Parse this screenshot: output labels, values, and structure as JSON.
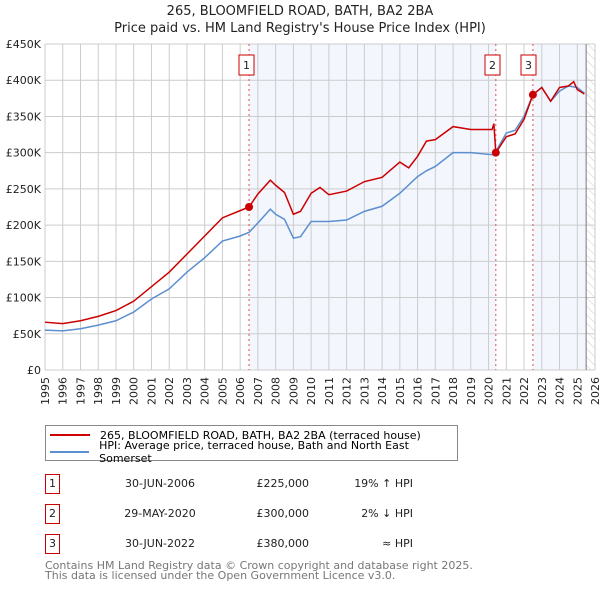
{
  "chart_data": {
    "type": "line",
    "title": "265, BLOOMFIELD ROAD, BATH, BA2 2BA",
    "subtitle": "Price paid vs. HM Land Registry's House Price Index (HPI)",
    "xlim": [
      1995,
      2026
    ],
    "ylim": [
      0,
      450000
    ],
    "x_ticks": [
      "1995",
      "1996",
      "1997",
      "1998",
      "1999",
      "2000",
      "2001",
      "2002",
      "2003",
      "2004",
      "2005",
      "2006",
      "2007",
      "2008",
      "2009",
      "2010",
      "2011",
      "2012",
      "2013",
      "2014",
      "2015",
      "2016",
      "2017",
      "2018",
      "2019",
      "2020",
      "2021",
      "2022",
      "2023",
      "2024",
      "2025",
      "2026"
    ],
    "y_ticks": [
      {
        "v": 0,
        "label": "£0"
      },
      {
        "v": 50000,
        "label": "£50K"
      },
      {
        "v": 100000,
        "label": "£100K"
      },
      {
        "v": 150000,
        "label": "£150K"
      },
      {
        "v": 200000,
        "label": "£200K"
      },
      {
        "v": 250000,
        "label": "£250K"
      },
      {
        "v": 300000,
        "label": "£300K"
      },
      {
        "v": 350000,
        "label": "£350K"
      },
      {
        "v": 400000,
        "label": "£400K"
      },
      {
        "v": 450000,
        "label": "£450K"
      }
    ],
    "grid": true,
    "shaded_ranges": [
      [
        2006.5,
        2020.41
      ],
      [
        2022.5,
        2025.5
      ]
    ],
    "future_hatch_from": 2025.5,
    "series": [
      {
        "name": "265, BLOOMFIELD ROAD, BATH, BA2 2BA (terraced house)",
        "color": "#cc0000",
        "x": [
          1995,
          1996,
          1997,
          1998,
          1999,
          2000,
          2001,
          2002,
          2003,
          2004,
          2005,
          2006,
          2006.5,
          2007,
          2007.7,
          2008,
          2008.5,
          2009,
          2009.4,
          2010,
          2010.5,
          2011,
          2012,
          2013,
          2014,
          2015,
          2015.5,
          2016,
          2016.5,
          2017,
          2018,
          2019,
          2020.2,
          2020.3,
          2020.41,
          2021,
          2021.5,
          2022,
          2022.5,
          2023,
          2023.5,
          2024,
          2024.5,
          2024.8,
          2025,
          2025.4
        ],
        "y": [
          66000,
          64000,
          68000,
          74000,
          82000,
          95000,
          115000,
          135000,
          160000,
          185000,
          210000,
          220000,
          225000,
          243000,
          262000,
          255000,
          245000,
          215000,
          219000,
          244000,
          252000,
          242000,
          247000,
          260000,
          266000,
          287000,
          279000,
          295000,
          316000,
          318000,
          336000,
          332000,
          332000,
          340000,
          300000,
          322000,
          326000,
          346000,
          380000,
          390000,
          371000,
          390000,
          392000,
          398000,
          387000,
          381000
        ]
      },
      {
        "name": "HPI: Average price, terraced house, Bath and North East Somerset",
        "color": "#5b8fd0",
        "x": [
          1995,
          1996,
          1997,
          1998,
          1999,
          2000,
          2001,
          2002,
          2003,
          2004,
          2005,
          2006,
          2006.5,
          2007,
          2007.7,
          2008,
          2008.5,
          2009,
          2009.4,
          2010,
          2011,
          2012,
          2013,
          2014,
          2015,
          2016,
          2016.5,
          2017,
          2018,
          2019,
          2020.3,
          2021,
          2021.5,
          2022,
          2022.5,
          2023,
          2023.5,
          2024,
          2024.5,
          2025,
          2025.4
        ],
        "y": [
          55000,
          54000,
          57000,
          62000,
          68000,
          80000,
          98000,
          112000,
          135000,
          155000,
          178000,
          185000,
          190000,
          203000,
          222000,
          215000,
          208000,
          182000,
          184000,
          205000,
          205000,
          207000,
          219000,
          226000,
          244000,
          267000,
          275000,
          281000,
          300000,
          300000,
          297000,
          327000,
          331000,
          350000,
          380000,
          390000,
          371000,
          385000,
          392000,
          390000,
          382000
        ]
      }
    ],
    "sales": [
      {
        "num": "1",
        "x": 2006.5,
        "y": 225000,
        "date": "30-JUN-2006",
        "price": "£225,000",
        "hpi": "19% ↑ HPI"
      },
      {
        "num": "2",
        "x": 2020.41,
        "y": 300000,
        "date": "29-MAY-2020",
        "price": "£300,000",
        "hpi": "2% ↓ HPI"
      },
      {
        "num": "3",
        "x": 2022.5,
        "y": 380000,
        "date": "30-JUN-2022",
        "price": "£380,000",
        "hpi": "≈ HPI"
      }
    ],
    "legend": {
      "placement": "below",
      "items": [
        "265, BLOOMFIELD ROAD, BATH, BA2 2BA (terraced house)",
        "HPI: Average price, terraced house, Bath and North East Somerset"
      ]
    }
  },
  "footer": {
    "line1": "Contains HM Land Registry data © Crown copyright and database right 2025.",
    "line2": "This data is licensed under the Open Government Licence v3.0."
  }
}
